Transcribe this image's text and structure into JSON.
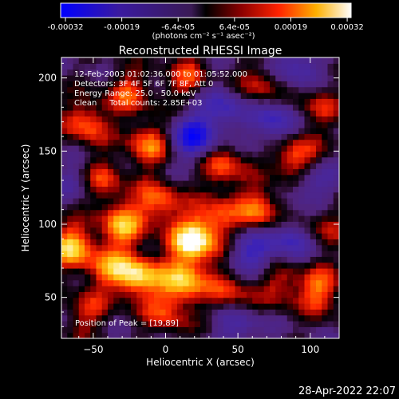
{
  "colorbar": {
    "ticks": [
      "-0.00032",
      "-0.00019",
      "-6.4e-05",
      "6.4e-05",
      "0.00019",
      "0.00032"
    ],
    "unit_label": "(photons cm⁻² s⁻¹ asec⁻²)"
  },
  "chart_data": {
    "type": "heatmap",
    "title": "Reconstructed RHESSI Image",
    "xlabel": "Heliocentric X (arcsec)",
    "ylabel": "Heliocentric Y (arcsec)",
    "xlim": [
      -72,
      120
    ],
    "ylim": [
      22,
      214
    ],
    "xticks": [
      -50,
      0,
      50,
      100
    ],
    "yticks": [
      50,
      100,
      150,
      200
    ],
    "value_range": [
      -0.00032,
      0.00032
    ],
    "colors": {
      "low": "#0000ff",
      "mid_low": "#5a2aa0",
      "mid": "#000000",
      "high1": "#ff2200",
      "high2": "#ffd000",
      "peak": "#ffffff"
    },
    "annotations": [
      "12-Feb-2003 01:02:36.000 to 01:05:52.000",
      "Detectors: 3F 4F 5F 6F 7F 8F, Att 0",
      "Energy Range: 25.0 - 50.0 keV",
      "Clean     Total counts: 2.85E+03"
    ],
    "peak_label": "Position of Peak = [19,89]",
    "peak_position": [
      19,
      89
    ],
    "hotspots": [
      {
        "x": 19,
        "y": 89,
        "v": 1.0
      },
      {
        "x": -20,
        "y": 65,
        "v": 0.85
      },
      {
        "x": 12,
        "y": 62,
        "v": 0.8
      },
      {
        "x": -30,
        "y": 100,
        "v": 0.7
      },
      {
        "x": -65,
        "y": 85,
        "v": 0.8
      },
      {
        "x": 90,
        "y": 145,
        "v": 0.75
      },
      {
        "x": 65,
        "y": 110,
        "v": 0.65
      },
      {
        "x": 107,
        "y": 55,
        "v": 0.6
      },
      {
        "x": -55,
        "y": 170,
        "v": 0.6
      },
      {
        "x": -45,
        "y": 130,
        "v": 0.55
      },
      {
        "x": -12,
        "y": 155,
        "v": 0.6
      },
      {
        "x": 40,
        "y": 140,
        "v": 0.55
      },
      {
        "x": 15,
        "y": 200,
        "v": 0.45
      },
      {
        "x": 65,
        "y": 195,
        "v": 0.45
      },
      {
        "x": 45,
        "y": 55,
        "v": 0.5
      },
      {
        "x": 80,
        "y": 60,
        "v": 0.45
      },
      {
        "x": -55,
        "y": 40,
        "v": 0.4
      },
      {
        "x": 35,
        "y": 105,
        "v": 0.5
      },
      {
        "x": -5,
        "y": 115,
        "v": 0.6
      },
      {
        "x": -40,
        "y": 70,
        "v": 0.5
      },
      {
        "x": 105,
        "y": 180,
        "v": 0.4
      },
      {
        "x": 0,
        "y": 40,
        "v": 0.45
      },
      {
        "x": -25,
        "y": 190,
        "v": 0.5
      },
      {
        "x": 110,
        "y": 100,
        "v": 0.35
      }
    ],
    "coldspots": [
      {
        "x": 20,
        "y": 160,
        "v": -0.8
      },
      {
        "x": 75,
        "y": 170,
        "v": -0.6
      },
      {
        "x": 90,
        "y": 210,
        "v": -0.5
      },
      {
        "x": 100,
        "y": 130,
        "v": -0.5
      },
      {
        "x": 60,
        "y": 80,
        "v": -0.55
      },
      {
        "x": 85,
        "y": 90,
        "v": -0.5
      },
      {
        "x": 50,
        "y": 30,
        "v": -0.4
      },
      {
        "x": -60,
        "y": 130,
        "v": -0.35
      },
      {
        "x": 40,
        "y": 180,
        "v": -0.5
      }
    ]
  },
  "footer": {
    "timestamp": "28-Apr-2022 22:07"
  }
}
